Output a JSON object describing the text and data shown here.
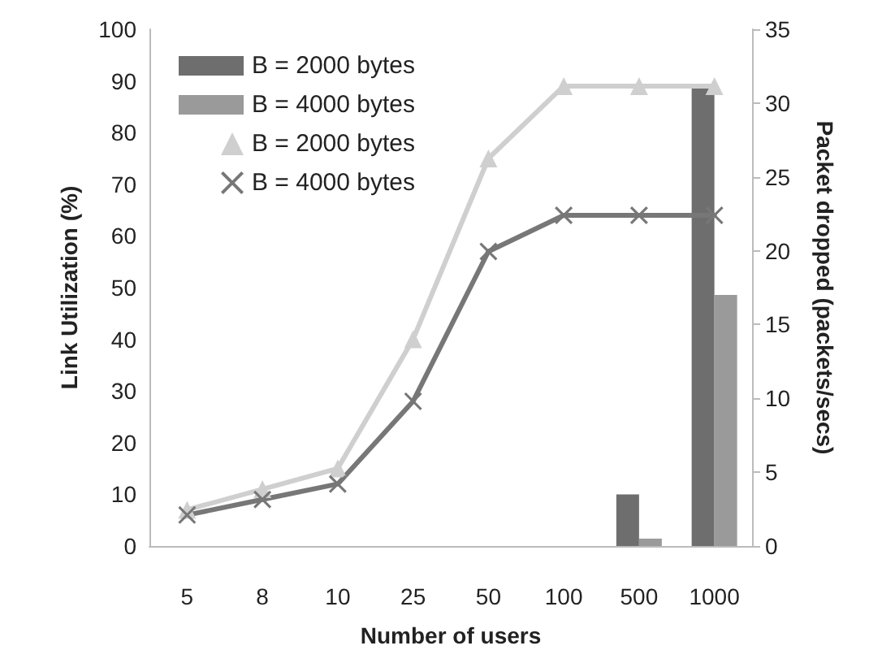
{
  "chart_data": {
    "type": "line",
    "xlabel": "Number of users",
    "ylabel": "Link Utilization (%)",
    "y2label": "Packet dropped (packets/secs)",
    "categories": [
      "5",
      "8",
      "10",
      "25",
      "50",
      "100",
      "500",
      "1000"
    ],
    "series": [
      {
        "name": "B = 2000 bytes",
        "type": "bar",
        "axis": "y2",
        "color": "#6e6e6e",
        "values": [
          0,
          0,
          0,
          0,
          0,
          0,
          3.5,
          31
        ]
      },
      {
        "name": "B = 4000 bytes",
        "type": "bar",
        "axis": "y2",
        "color": "#9a9a9a",
        "values": [
          0,
          0,
          0,
          0,
          0,
          0,
          0.5,
          17
        ]
      },
      {
        "name": "B = 2000 bytes",
        "color": "#cfcfcf",
        "marker": "triangle",
        "values": [
          7,
          11,
          15,
          40,
          75,
          89,
          89,
          89
        ]
      },
      {
        "name": "B = 4000 bytes",
        "color": "#777777",
        "marker": "cross",
        "values": [
          6,
          9,
          12,
          28,
          57,
          64,
          64,
          64
        ]
      }
    ],
    "ylim": [
      0,
      100
    ],
    "yticks": [
      0,
      10,
      20,
      30,
      40,
      50,
      60,
      70,
      80,
      90,
      100
    ],
    "y2lim": [
      0,
      35
    ],
    "y2ticks": [
      0,
      5,
      10,
      15,
      20,
      25,
      30,
      35
    ],
    "grid": false,
    "legend": "top left"
  }
}
